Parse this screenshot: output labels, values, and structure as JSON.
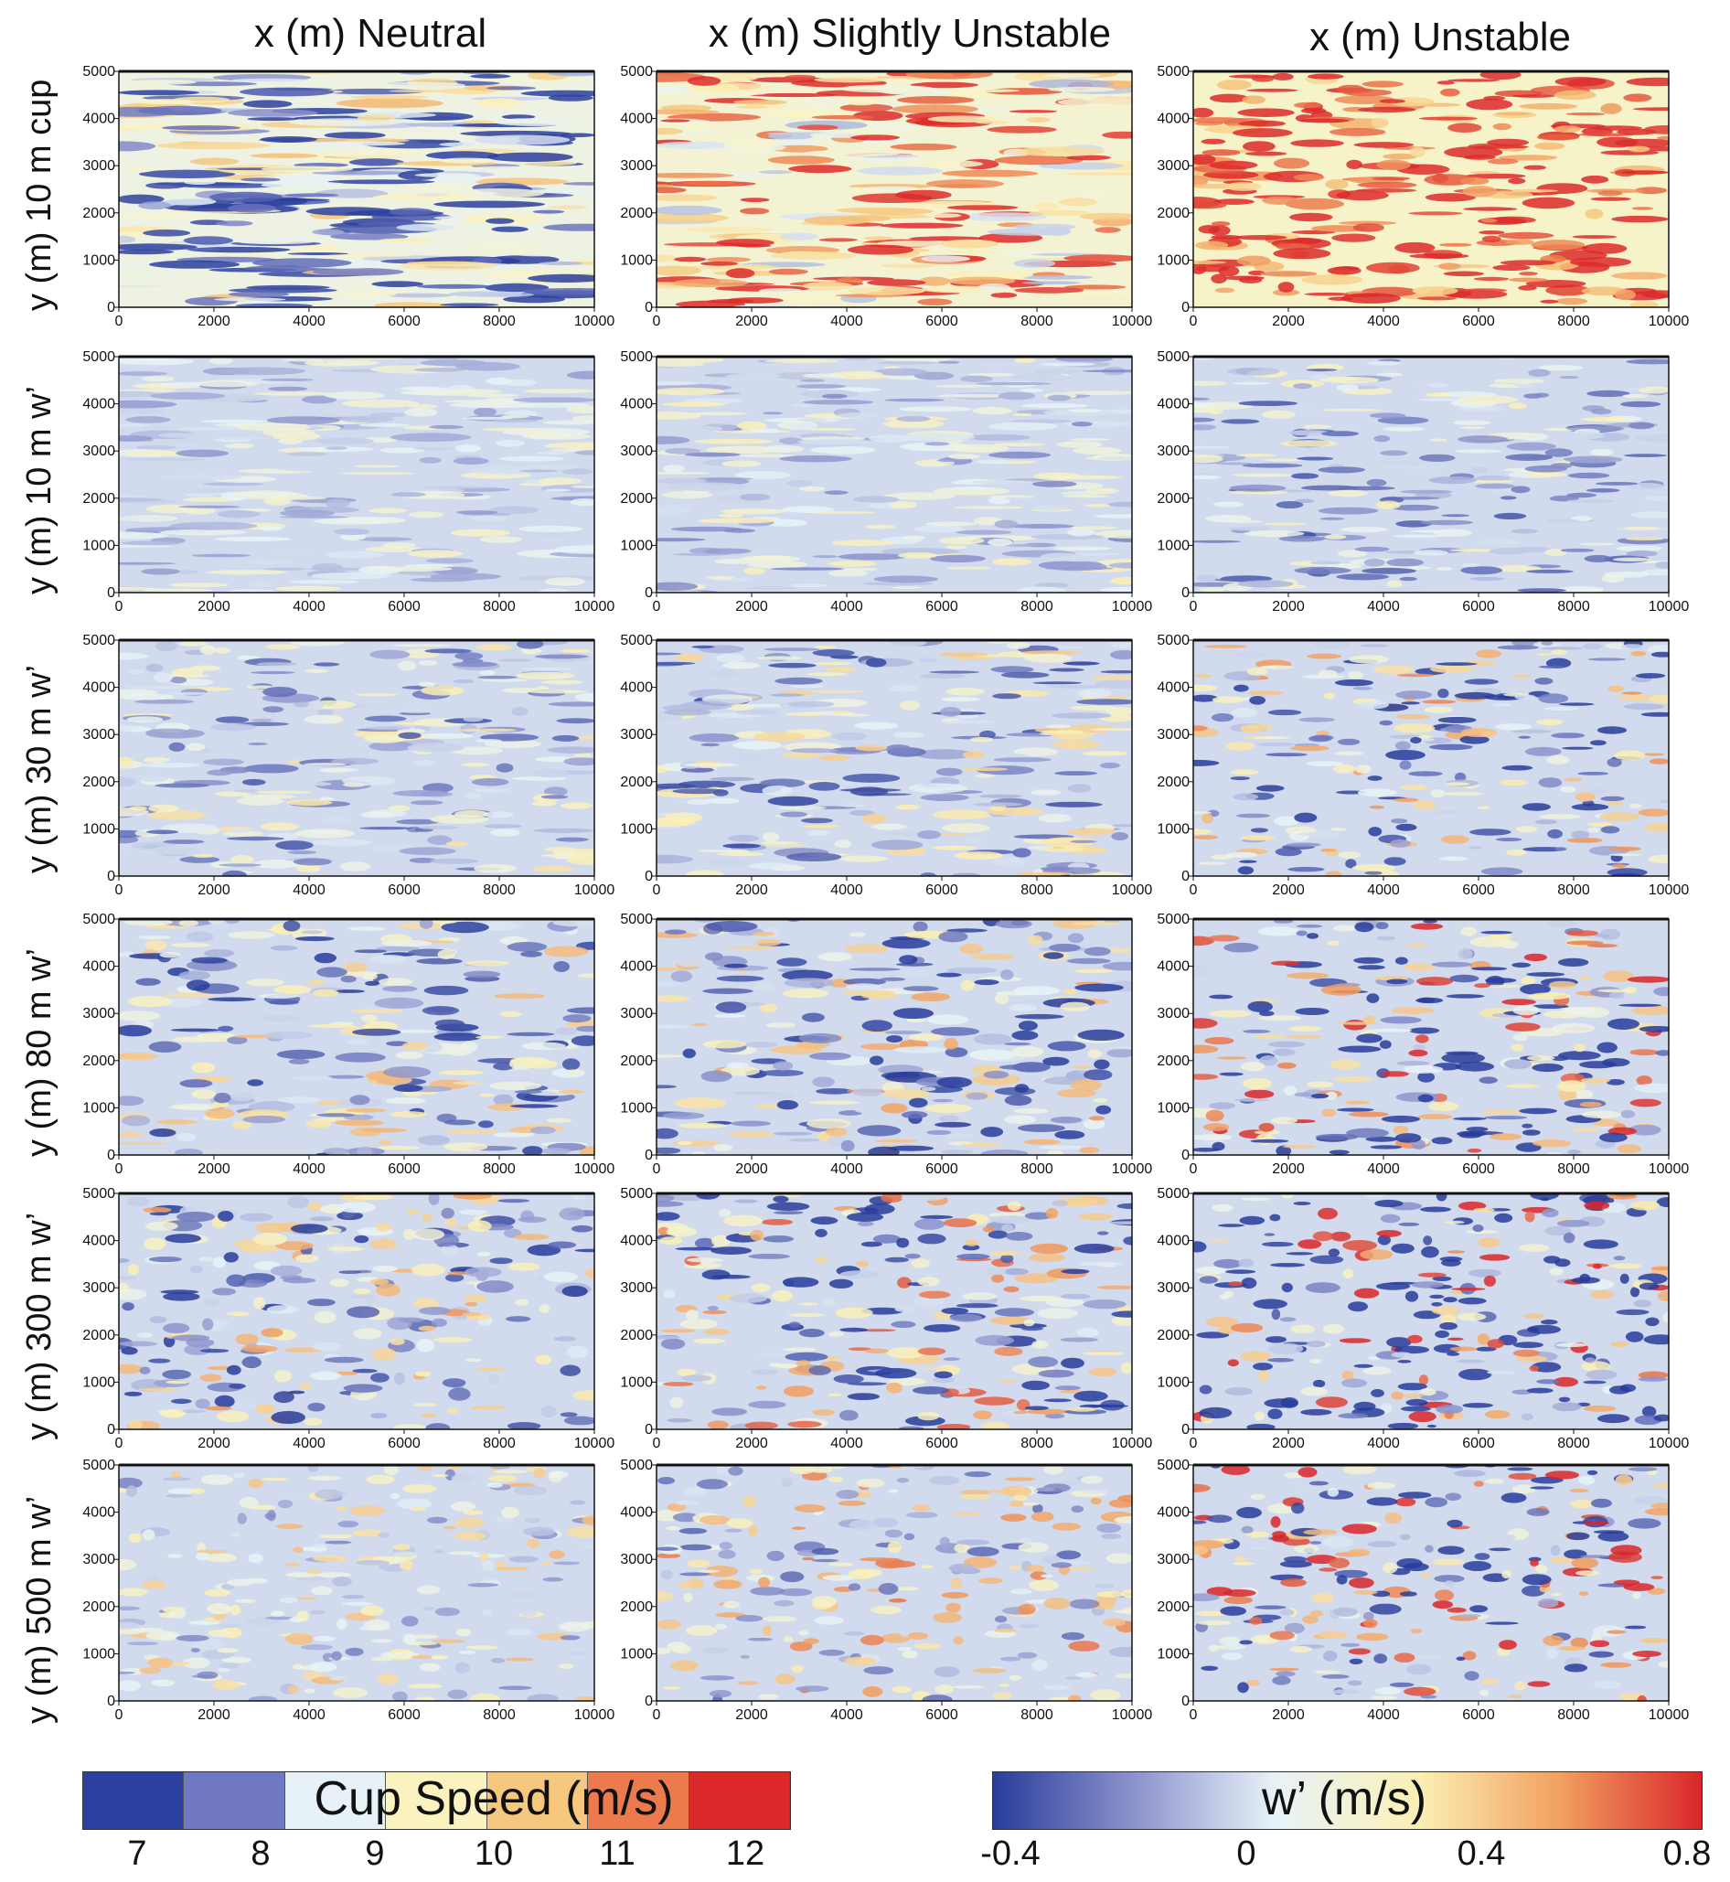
{
  "columns": [
    "x (m) Neutral",
    "x (m) Slightly Unstable",
    "x (m) Unstable"
  ],
  "rows": [
    "y (m) 10 m cup",
    "y (m) 10 m w’",
    "y (m) 30 m w’",
    "y (m) 80 m w’",
    "y (m) 300 m w’",
    "y (m) 500 m w’"
  ],
  "colorbar_cup": {
    "title": "Cup Speed (m/s)",
    "ticks": [
      "7",
      "8",
      "9",
      "10",
      "11",
      "12"
    ],
    "colors": [
      "#2b3f9e",
      "#6f78c0",
      "#e6f2f8",
      "#fbf3bf",
      "#f6c77e",
      "#ec7a4d",
      "#dc2a2a"
    ]
  },
  "colorbar_w": {
    "title": "w’ (m/s)",
    "ticks": [
      "-0.4",
      "0",
      "0.4",
      "0.8"
    ],
    "colors": [
      "#283c9a",
      "#8d93cc",
      "#e8f3f8",
      "#fbf0b5",
      "#f2a060",
      "#d9262a"
    ]
  },
  "chart_data": {
    "type": "heatmap",
    "x_ticks": [
      "0",
      "2000",
      "4000",
      "6000",
      "8000",
      "10000"
    ],
    "y_ticks": [
      "0",
      "1000",
      "2000",
      "3000",
      "4000",
      "5000"
    ],
    "xlim": [
      0,
      10000
    ],
    "ylim": [
      0,
      5000
    ],
    "panels": [
      {
        "row": "10 m cup",
        "column": "Neutral",
        "variable": "Cup Speed (m/s)"
      },
      {
        "row": "10 m cup",
        "column": "Slightly Unstable",
        "variable": "Cup Speed (m/s)"
      },
      {
        "row": "10 m cup",
        "column": "Unstable",
        "variable": "Cup Speed (m/s)"
      },
      {
        "row": "10 m w’",
        "column": "Neutral",
        "variable": "w’ (m/s)"
      },
      {
        "row": "10 m w’",
        "column": "Slightly Unstable",
        "variable": "w’ (m/s)"
      },
      {
        "row": "10 m w’",
        "column": "Unstable",
        "variable": "w’ (m/s)"
      },
      {
        "row": "30 m w’",
        "column": "Neutral",
        "variable": "w’ (m/s)"
      },
      {
        "row": "30 m w’",
        "column": "Slightly Unstable",
        "variable": "w’ (m/s)"
      },
      {
        "row": "30 m w’",
        "column": "Unstable",
        "variable": "w’ (m/s)"
      },
      {
        "row": "80 m w’",
        "column": "Neutral",
        "variable": "w’ (m/s)"
      },
      {
        "row": "80 m w’",
        "column": "Slightly Unstable",
        "variable": "w’ (m/s)"
      },
      {
        "row": "80 m w’",
        "column": "Unstable",
        "variable": "w’ (m/s)"
      },
      {
        "row": "300 m w’",
        "column": "Neutral",
        "variable": "w’ (m/s)"
      },
      {
        "row": "300 m w’",
        "column": "Slightly Unstable",
        "variable": "w’ (m/s)"
      },
      {
        "row": "300 m w’",
        "column": "Unstable",
        "variable": "w’ (m/s)"
      },
      {
        "row": "500 m w’",
        "column": "Neutral",
        "variable": "w’ (m/s)"
      },
      {
        "row": "500 m w’",
        "column": "Slightly Unstable",
        "variable": "w’ (m/s)"
      },
      {
        "row": "500 m w’",
        "column": "Unstable",
        "variable": "w’ (m/s)"
      }
    ]
  }
}
